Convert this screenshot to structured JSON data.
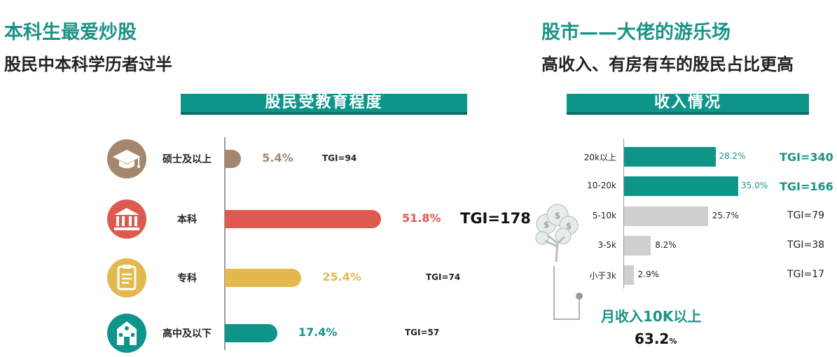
{
  "left": {
    "title": "本科生最爱炒股",
    "subtitle": "股民中本科学历者过半",
    "banner": "股民受教育程度",
    "overall_tgi": "TGI=178"
  },
  "right": {
    "title": "股市——大佬的游乐场",
    "subtitle": "高收入、有房有车的股民占比更高",
    "banner": "收入情况",
    "callout_label": "月收入10K以上",
    "callout_value": "63.2",
    "callout_unit": "%"
  },
  "colors": {
    "teal": "#0e958a",
    "brown": "#a5876d",
    "red": "#dd5a4f",
    "yellow": "#e3b94e",
    "gray": "#cfcfcf"
  },
  "chart_data": [
    {
      "type": "bar",
      "orientation": "horizontal",
      "title": "股民受教育程度",
      "categories": [
        "硕士及以上",
        "本科",
        "专科",
        "高中及以下"
      ],
      "values": [
        5.4,
        51.8,
        25.4,
        17.4
      ],
      "value_labels": [
        "5.4%",
        "51.8%",
        "25.4%",
        "17.4%"
      ],
      "tgi": [
        "TGI=94",
        "",
        "TGI=74",
        "TGI=57"
      ],
      "icons": [
        "graduation-cap-icon",
        "bank-building-icon",
        "clipboard-icon",
        "school-house-icon"
      ],
      "colors": [
        "#a5876d",
        "#dd5a4f",
        "#e3b94e",
        "#0e958a"
      ]
    },
    {
      "type": "bar",
      "orientation": "horizontal",
      "title": "收入情况",
      "categories": [
        "20k以上",
        "10-20k",
        "5-10k",
        "3-5k",
        "小于3k"
      ],
      "values": [
        28.2,
        35.0,
        25.7,
        8.2,
        2.9
      ],
      "value_labels": [
        "28.2%",
        "35.0%",
        "25.7%",
        "8.2%",
        "2.9%"
      ],
      "tgi": [
        "TGI=340",
        "TGI=166",
        "TGI=79",
        "TGI=38",
        "TGI=17"
      ],
      "highlight": [
        true,
        true,
        false,
        false,
        false
      ]
    }
  ]
}
